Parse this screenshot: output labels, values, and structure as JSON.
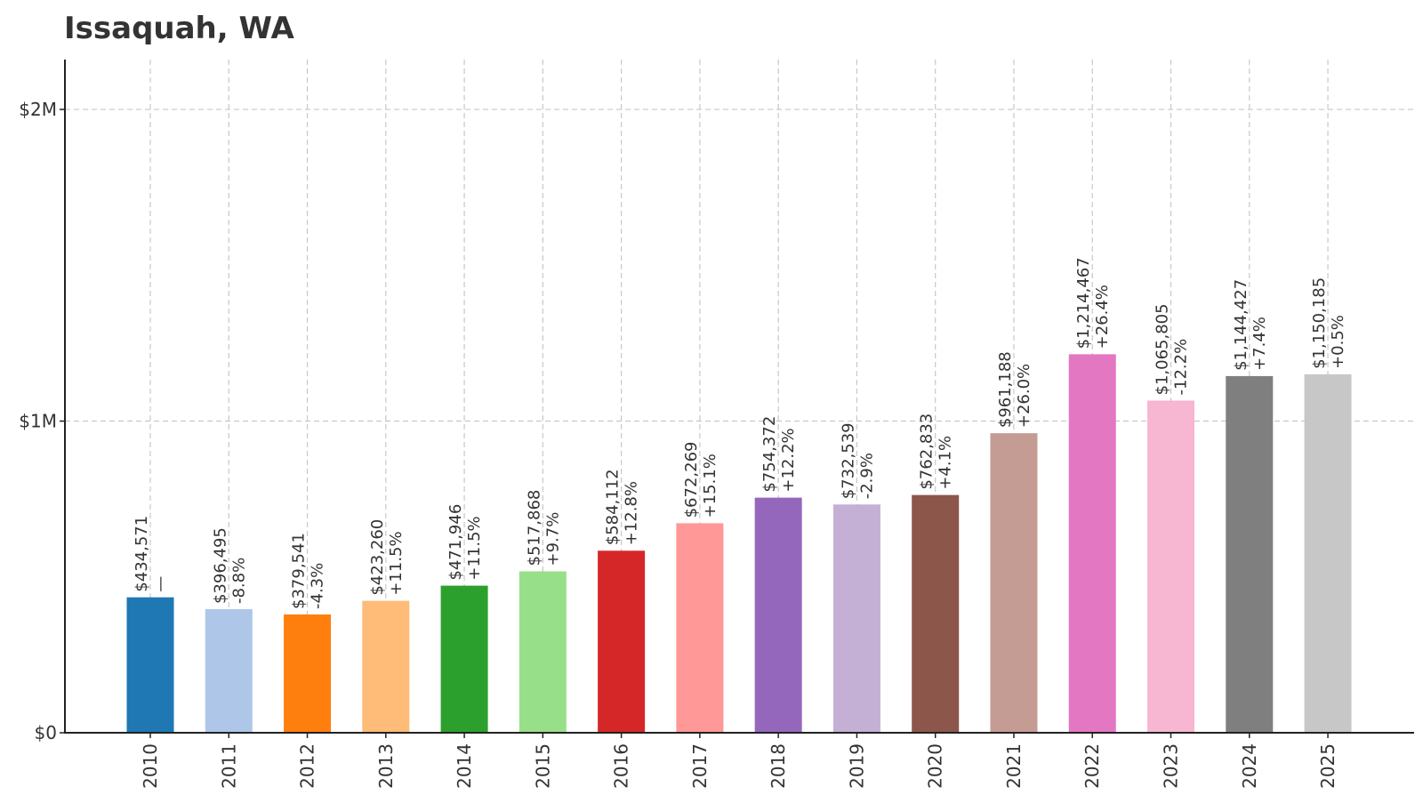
{
  "chart_data": {
    "type": "bar",
    "title": "Issaquah, WA",
    "xlabel": "",
    "ylabel": "",
    "ylim": [
      0,
      2160000
    ],
    "y_ticks": [
      {
        "value": 0,
        "label": "$0"
      },
      {
        "value": 1000000,
        "label": "$1M"
      },
      {
        "value": 2000000,
        "label": "$2M"
      }
    ],
    "grid": true,
    "legend": "none",
    "categories": [
      "2010",
      "2011",
      "2012",
      "2013",
      "2014",
      "2015",
      "2016",
      "2017",
      "2018",
      "2019",
      "2020",
      "2021",
      "2022",
      "2023",
      "2024",
      "2025"
    ],
    "values": [
      434571,
      396495,
      379541,
      423260,
      471946,
      517868,
      584112,
      672269,
      754372,
      732539,
      762833,
      961188,
      1214467,
      1065805,
      1144427,
      1150185
    ],
    "value_labels": [
      "$434,571",
      "$396,495",
      "$379,541",
      "$423,260",
      "$471,946",
      "$517,868",
      "$584,112",
      "$672,269",
      "$754,372",
      "$732,539",
      "$762,833",
      "$961,188",
      "$1,214,467",
      "$1,065,805",
      "$1,144,427",
      "$1,150,185"
    ],
    "change_labels": [
      "—",
      "-8.8%",
      "-4.3%",
      "+11.5%",
      "+11.5%",
      "+9.7%",
      "+12.8%",
      "+15.1%",
      "+12.2%",
      "-2.9%",
      "+4.1%",
      "+26.0%",
      "+26.4%",
      "-12.2%",
      "+7.4%",
      "+0.5%"
    ],
    "colors": [
      "#1f77b4",
      "#aec7e8",
      "#ff7f0e",
      "#ffbb78",
      "#2ca02c",
      "#98df8a",
      "#d62728",
      "#ff9896",
      "#9467bd",
      "#c5b0d5",
      "#8c564b",
      "#c49c94",
      "#e377c2",
      "#f7b6d2",
      "#7f7f7f",
      "#c7c7c7"
    ]
  }
}
